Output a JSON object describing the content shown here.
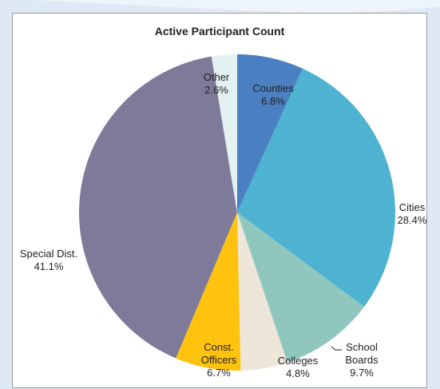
{
  "chart_data": {
    "type": "pie",
    "title": "Active Participant Count",
    "slices": [
      {
        "label": [
          "Counties"
        ],
        "value": 6.8,
        "display": "6.8%",
        "color": "#4a7fc1"
      },
      {
        "label": [
          "Cities"
        ],
        "value": 28.4,
        "display": "28.4%",
        "color": "#4db3d0"
      },
      {
        "label": [
          "School",
          "Boards"
        ],
        "value": 9.7,
        "display": "9.7%",
        "color": "#8fc7be"
      },
      {
        "label": [
          "Colleges"
        ],
        "value": 4.8,
        "display": "4.8%",
        "color": "#efe6da"
      },
      {
        "label": [
          "Const.",
          "Officers"
        ],
        "value": 6.7,
        "display": "6.7%",
        "color": "#ffc20e"
      },
      {
        "label": [
          "Special Dist."
        ],
        "value": 41.1,
        "display": "41.1%",
        "color": "#7e7a99"
      },
      {
        "label": [
          "Other"
        ],
        "value": 2.6,
        "display": "2.6%",
        "color": "#e4f1f1"
      }
    ],
    "start_angle_deg": 0,
    "direction": "clockwise",
    "legend": "none"
  },
  "page": {
    "background": "#dfe9f5",
    "frame_color": "#ffffff"
  }
}
